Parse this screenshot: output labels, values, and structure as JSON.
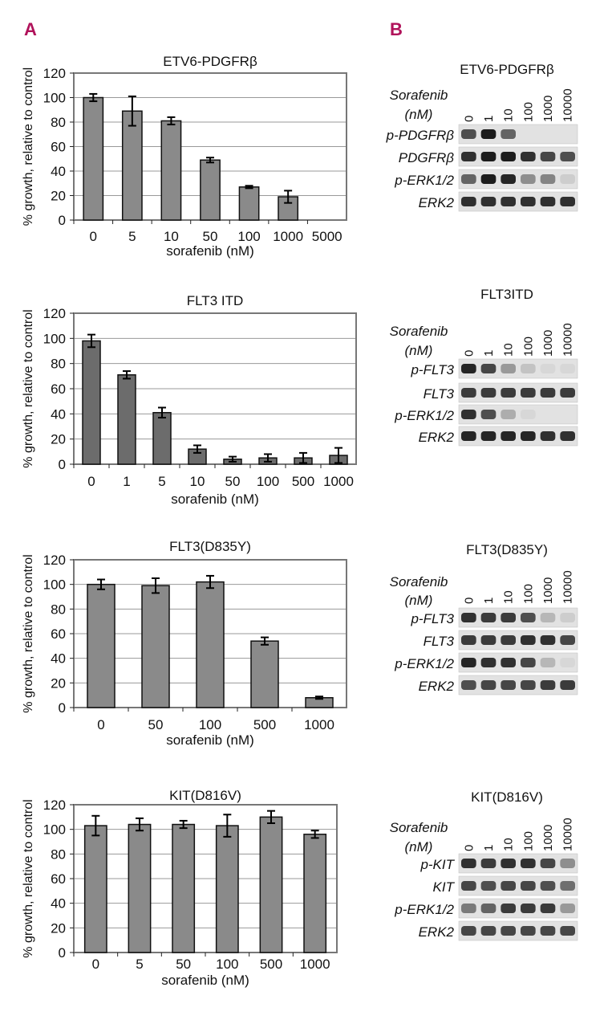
{
  "panels": {
    "a": "A",
    "b": "B"
  },
  "chart_data": [
    {
      "type": "bar",
      "title": "ETV6-PDGFRβ",
      "categories": [
        "0",
        "5",
        "10",
        "50",
        "100",
        "1000",
        "5000"
      ],
      "values": [
        100,
        89,
        81,
        49,
        27,
        19,
        0
      ],
      "errors": [
        3,
        12,
        3,
        2,
        1,
        5,
        0
      ],
      "xlabel": "sorafenib (nM)",
      "ylabel": "% growth, relative to control",
      "ylim": [
        0,
        120
      ],
      "yticks": [
        0,
        20,
        40,
        60,
        80,
        100,
        120
      ],
      "bar_color": "#8a8a8a"
    },
    {
      "type": "bar",
      "title": "FLT3 ITD",
      "categories": [
        "0",
        "1",
        "5",
        "10",
        "50",
        "100",
        "500",
        "1000"
      ],
      "values": [
        98,
        71,
        41,
        12,
        4,
        5,
        5,
        7
      ],
      "errors": [
        5,
        3,
        4,
        3,
        2,
        3,
        4,
        6
      ],
      "xlabel": "sorafenib (nM)",
      "ylabel": "% growth, relative to control",
      "ylim": [
        0,
        120
      ],
      "yticks": [
        0,
        20,
        40,
        60,
        80,
        100,
        120
      ],
      "bar_color": "#6c6c6c"
    },
    {
      "type": "bar",
      "title": "FLT3(D835Y)",
      "categories": [
        "0",
        "50",
        "100",
        "500",
        "1000"
      ],
      "values": [
        100,
        99,
        102,
        54,
        8
      ],
      "errors": [
        4,
        6,
        5,
        3,
        1
      ],
      "xlabel": "sorafenib (nM)",
      "ylabel": "% growth, relative to control",
      "ylim": [
        0,
        120
      ],
      "yticks": [
        0,
        20,
        40,
        60,
        80,
        100,
        120
      ],
      "bar_color": "#8a8a8a"
    },
    {
      "type": "bar",
      "title": "KIT(D816V)",
      "categories": [
        "0",
        "5",
        "50",
        "100",
        "500",
        "1000"
      ],
      "values": [
        103,
        104,
        104,
        103,
        110,
        96
      ],
      "errors": [
        8,
        5,
        3,
        9,
        5,
        3
      ],
      "xlabel": "sorafenib (nM)",
      "ylabel": "% growth, relative to control",
      "ylim": [
        0,
        120
      ],
      "yticks": [
        0,
        20,
        40,
        60,
        80,
        100,
        120
      ],
      "bar_color": "#8a8a8a"
    }
  ],
  "blots": [
    {
      "title": "ETV6-PDGFRβ",
      "drug": "Sorafenib",
      "unit": "(nM)",
      "doses": [
        "0",
        "1",
        "10",
        "100",
        "1000",
        "10000"
      ],
      "rows": [
        {
          "label": "p-PDGFRβ",
          "intensity": [
            0.7,
            0.95,
            0.6,
            0,
            0,
            0
          ]
        },
        {
          "label": "PDGFRβ",
          "intensity": [
            0.85,
            0.95,
            0.95,
            0.85,
            0.75,
            0.7
          ]
        },
        {
          "label": "p-ERK1/2",
          "intensity": [
            0.6,
            0.95,
            0.9,
            0.4,
            0.45,
            0.1
          ]
        },
        {
          "label": "ERK2",
          "intensity": [
            0.85,
            0.85,
            0.85,
            0.85,
            0.85,
            0.85
          ]
        }
      ]
    },
    {
      "title": "FLT3ITD",
      "drug": "Sorafenib",
      "unit": "(nM)",
      "doses": [
        "0",
        "1",
        "10",
        "100",
        "1000",
        "10000"
      ],
      "rows": [
        {
          "label": "p-FLT3",
          "intensity": [
            0.9,
            0.75,
            0.35,
            0.15,
            0.05,
            0.05
          ]
        },
        {
          "label": "FLT3",
          "intensity": [
            0.8,
            0.8,
            0.8,
            0.8,
            0.8,
            0.8
          ]
        },
        {
          "label": "p-ERK1/2",
          "intensity": [
            0.85,
            0.7,
            0.25,
            0.05,
            0,
            0
          ]
        },
        {
          "label": "ERK2",
          "intensity": [
            0.9,
            0.9,
            0.9,
            0.9,
            0.85,
            0.85
          ]
        }
      ]
    },
    {
      "title": "FLT3(D835Y)",
      "drug": "Sorafenib",
      "unit": "(nM)",
      "doses": [
        "0",
        "1",
        "10",
        "100",
        "1000",
        "10000"
      ],
      "rows": [
        {
          "label": "p-FLT3",
          "intensity": [
            0.85,
            0.8,
            0.8,
            0.7,
            0.2,
            0.1
          ]
        },
        {
          "label": "FLT3",
          "intensity": [
            0.8,
            0.8,
            0.8,
            0.85,
            0.85,
            0.75
          ]
        },
        {
          "label": "p-ERK1/2",
          "intensity": [
            0.9,
            0.85,
            0.85,
            0.75,
            0.2,
            0.05
          ]
        },
        {
          "label": "ERK2",
          "intensity": [
            0.7,
            0.75,
            0.75,
            0.75,
            0.8,
            0.8
          ]
        }
      ]
    },
    {
      "title": "KIT(D816V)",
      "drug": "Sorafenib",
      "unit": "(nM)",
      "doses": [
        "0",
        "1",
        "10",
        "100",
        "1000",
        "10000"
      ],
      "rows": [
        {
          "label": "p-KIT",
          "intensity": [
            0.85,
            0.8,
            0.85,
            0.85,
            0.75,
            0.4
          ]
        },
        {
          "label": "KIT",
          "intensity": [
            0.75,
            0.7,
            0.75,
            0.75,
            0.7,
            0.55
          ]
        },
        {
          "label": "p-ERK1/2",
          "intensity": [
            0.5,
            0.6,
            0.8,
            0.8,
            0.8,
            0.35
          ]
        },
        {
          "label": "ERK2",
          "intensity": [
            0.75,
            0.75,
            0.75,
            0.75,
            0.75,
            0.75
          ]
        }
      ]
    }
  ]
}
